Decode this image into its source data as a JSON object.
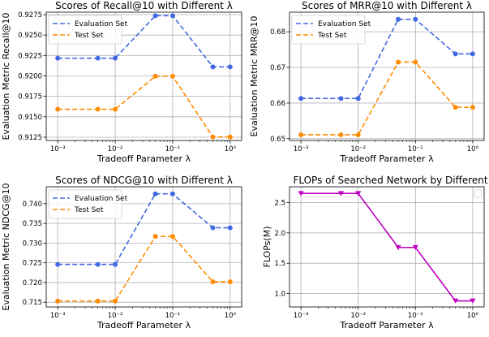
{
  "chart_data": [
    {
      "type": "line",
      "title": "Scores of Recall@10 with Different λ",
      "xlabel": "Tradeoff Parameter λ",
      "ylabel": "Evaluation Metric Recall@10",
      "xscale": "log",
      "x": [
        0.001,
        0.005,
        0.01,
        0.05,
        0.1,
        0.5,
        1
      ],
      "xticks": [
        0.001,
        0.01,
        0.1,
        1
      ],
      "xtick_labels": [
        "10⁻³",
        "10⁻²",
        "10⁻¹",
        "10⁰"
      ],
      "ylim": [
        9.121,
        9.278
      ],
      "yticks": [
        9.125,
        9.15,
        9.175,
        9.2,
        9.225,
        9.25,
        9.275
      ],
      "ytick_labels": [
        "0.9125",
        "0.9150",
        "0.9175",
        "0.9200",
        "0.9225",
        "0.9250",
        "0.9275"
      ],
      "grid": true,
      "legend": "upper left",
      "series": [
        {
          "name": "Evaluation Set",
          "color": "#4169e1",
          "marker": "circle",
          "values": [
            9.2217,
            9.2217,
            9.2217,
            9.2737,
            9.2737,
            9.2111,
            9.2111
          ]
        },
        {
          "name": "Test Set",
          "color": "#ff8c00",
          "marker": "circle",
          "values": [
            9.1592,
            9.1592,
            9.1592,
            9.1996,
            9.1996,
            9.1254,
            9.1254
          ]
        }
      ]
    },
    {
      "type": "line",
      "title": "Scores of MRR@10 with Different λ",
      "xlabel": "Tradeoff Parameter λ",
      "ylabel": "Evaluation Metric MRR@10",
      "xscale": "log",
      "x": [
        0.001,
        0.005,
        0.01,
        0.05,
        0.1,
        0.5,
        1
      ],
      "xticks": [
        0.001,
        0.01,
        0.1,
        1
      ],
      "xtick_labels": [
        "10⁻³",
        "10⁻²",
        "10⁻¹",
        "10⁰"
      ],
      "ylim": [
        0.6495,
        0.6855
      ],
      "yticks": [
        0.65,
        0.66,
        0.67,
        0.68
      ],
      "ytick_labels": [
        "0.65",
        "0.66",
        "0.67",
        "0.68"
      ],
      "grid": true,
      "legend": "upper left",
      "series": [
        {
          "name": "Evaluation Set",
          "color": "#4169e1",
          "marker": "circle",
          "values": [
            0.6613,
            0.6613,
            0.6613,
            0.6835,
            0.6835,
            0.6738,
            0.6738
          ]
        },
        {
          "name": "Test Set",
          "color": "#ff8c00",
          "marker": "circle",
          "values": [
            0.6511,
            0.6511,
            0.6511,
            0.6715,
            0.6715,
            0.6588,
            0.6588
          ]
        }
      ]
    },
    {
      "type": "line",
      "title": "Scores of NDCG@10 with Different λ",
      "xlabel": "Tradeoff Parameter λ",
      "ylabel": "Evaluation Metric NDCG@10",
      "xscale": "log",
      "x": [
        0.001,
        0.005,
        0.01,
        0.05,
        0.1,
        0.5,
        1
      ],
      "xticks": [
        0.001,
        0.01,
        0.1,
        1
      ],
      "xtick_labels": [
        "10⁻³",
        "10⁻²",
        "10⁻¹",
        "10⁰"
      ],
      "ylim": [
        0.7138,
        0.7443
      ],
      "yticks": [
        0.715,
        0.72,
        0.725,
        0.73,
        0.735,
        0.74
      ],
      "ytick_labels": [
        "0.715",
        "0.720",
        "0.725",
        "0.730",
        "0.735",
        "0.740"
      ],
      "grid": true,
      "legend": "upper left",
      "series": [
        {
          "name": "Evaluation Set",
          "color": "#4169e1",
          "marker": "circle",
          "values": [
            0.7246,
            0.7246,
            0.7246,
            0.7425,
            0.7425,
            0.7339,
            0.7339
          ]
        },
        {
          "name": "Test Set",
          "color": "#ff8c00",
          "marker": "circle",
          "values": [
            0.7153,
            0.7153,
            0.7153,
            0.7317,
            0.7317,
            0.7202,
            0.7202
          ]
        }
      ]
    },
    {
      "type": "line",
      "title": "FLOPs of Searched Network by Different λ",
      "xlabel": "Tradeoff Parameter λ",
      "ylabel": "FLOPs(M)",
      "xscale": "log",
      "x": [
        0.001,
        0.005,
        0.01,
        0.05,
        0.1,
        0.5,
        1
      ],
      "xticks": [
        0.001,
        0.01,
        0.1,
        1
      ],
      "xtick_labels": [
        "10⁻³",
        "10⁻²",
        "10⁻¹",
        "10⁰"
      ],
      "ylim": [
        0.78,
        2.76
      ],
      "yticks": [
        1.0,
        1.5,
        2.0,
        2.5
      ],
      "ytick_labels": [
        "1.0",
        "1.5",
        "2.0",
        "2.5"
      ],
      "grid": true,
      "legend": "upper right (empty)",
      "series": [
        {
          "color": "#c000c0",
          "marker": "triangle-down",
          "values": [
            2.65,
            2.65,
            2.65,
            1.76,
            1.76,
            0.88,
            0.88
          ]
        }
      ]
    }
  ]
}
